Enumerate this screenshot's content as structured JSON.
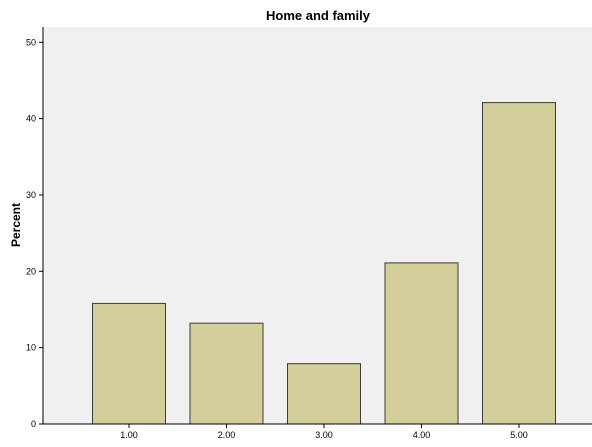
{
  "chart_data": {
    "type": "bar",
    "title": "Home and family",
    "xlabel": "",
    "ylabel": "Percent",
    "categories": [
      "1.00",
      "2.00",
      "3.00",
      "4.00",
      "5.00"
    ],
    "values": [
      15.8,
      13.2,
      7.9,
      21.1,
      42.1
    ],
    "ylim": [
      0,
      52
    ],
    "yticks": [
      0,
      10,
      20,
      30,
      40,
      50
    ],
    "grid": false,
    "legend": "none",
    "colors": {
      "bar_fill": "#d3ce9a",
      "bar_stroke": "#3a3a3a",
      "plot_background": "#f0f0f0"
    }
  }
}
